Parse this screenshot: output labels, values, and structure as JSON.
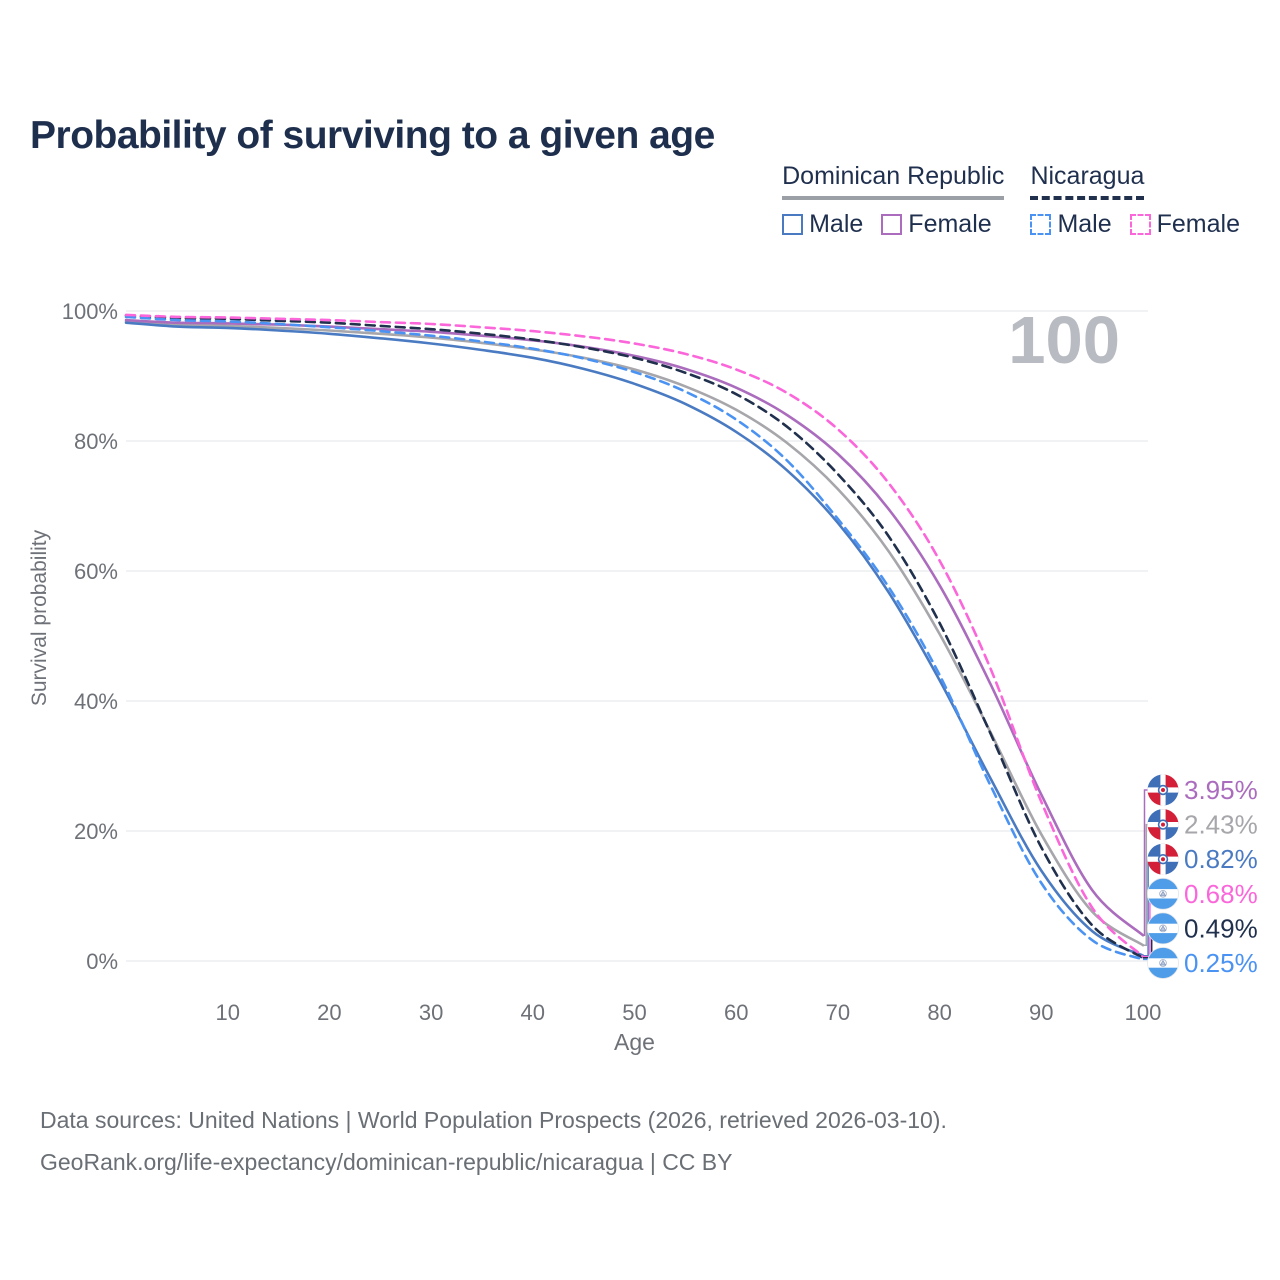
{
  "title": "Probability of surviving to a given age",
  "watermark": "100",
  "legend": {
    "groups": [
      {
        "name": "Dominican Republic",
        "line_style": "solid",
        "items": [
          {
            "label": "Male",
            "series": "dr_male"
          },
          {
            "label": "Female",
            "series": "dr_female"
          }
        ]
      },
      {
        "name": "Nicaragua",
        "line_style": "dashed",
        "items": [
          {
            "label": "Male",
            "series": "nic_male"
          },
          {
            "label": "Female",
            "series": "nic_female"
          }
        ]
      }
    ]
  },
  "axes": {
    "x": {
      "label": "Age",
      "ticks": [
        "10",
        "20",
        "30",
        "40",
        "50",
        "60",
        "70",
        "80",
        "90",
        "100"
      ],
      "tick_ages": [
        10,
        20,
        30,
        40,
        50,
        60,
        70,
        80,
        90,
        100
      ]
    },
    "y": {
      "label": "Survival probability",
      "ticks": [
        "0%",
        "20%",
        "40%",
        "60%",
        "80%",
        "100%"
      ],
      "tick_values": [
        0,
        20,
        40,
        60,
        80,
        100
      ]
    }
  },
  "end_labels": [
    {
      "value": "3.95%",
      "series": "dr_female",
      "flag": "dominican-republic"
    },
    {
      "value": "2.43%",
      "series": "dr_both",
      "flag": "dominican-republic"
    },
    {
      "value": "0.82%",
      "series": "dr_male",
      "flag": "dominican-republic"
    },
    {
      "value": "0.68%",
      "series": "nic_female",
      "flag": "nicaragua"
    },
    {
      "value": "0.49%",
      "series": "nic_both",
      "flag": "nicaragua"
    },
    {
      "value": "0.25%",
      "series": "nic_male",
      "flag": "nicaragua"
    }
  ],
  "colors": {
    "dr_male": "#4a7bc2",
    "dr_female": "#ab6cbe",
    "dr_both": "#a6a6ab",
    "nic_male": "#4b93f2",
    "nic_female": "#fb66da",
    "nic_both": "#20304d",
    "grid": "#e8e9ec",
    "axis_text": "#6e7278",
    "title_text": "#1e2f4d",
    "watermark": "#b8bbc1",
    "footer_text": "#6a6f75",
    "flag_dr_blue": "#3e6fb7",
    "flag_dr_red": "#d32038",
    "flag_nic_blue": "#4f9ce8"
  },
  "footer": {
    "line1": "Data sources: United Nations | World Population Prospects (2026, retrieved 2026-03-10).",
    "line2": "GeoRank.org/life-expectancy/dominican-republic/nicaragua | CC BY"
  },
  "chart_data": {
    "type": "line",
    "title": "Probability of surviving to a given age",
    "xlabel": "Age",
    "ylabel": "Survival probability",
    "xlim": [
      0,
      100
    ],
    "ylim": [
      0,
      100
    ],
    "grid": "horizontal",
    "legend_position": "top-right",
    "x": [
      0,
      5,
      10,
      15,
      20,
      25,
      30,
      35,
      40,
      45,
      50,
      55,
      60,
      65,
      70,
      75,
      80,
      85,
      90,
      95,
      100
    ],
    "series": [
      {
        "name": "Dominican Republic Both sexes",
        "country": "Dominican Republic",
        "sex": "both",
        "line_style": "solid",
        "color_key": "dr_both",
        "end_label": "2.43%",
        "values": [
          98.4,
          97.9,
          97.7,
          97.4,
          97.0,
          96.5,
          95.9,
          95.1,
          94.1,
          92.8,
          91.0,
          88.4,
          84.8,
          79.7,
          72.6,
          63.0,
          50.3,
          35.2,
          19.5,
          7.6,
          2.43
        ]
      },
      {
        "name": "Dominican Republic Male",
        "country": "Dominican Republic",
        "sex": "male",
        "line_style": "solid",
        "color_key": "dr_male",
        "end_label": "0.82%",
        "values": [
          98.2,
          97.6,
          97.4,
          97.0,
          96.5,
          95.8,
          95.0,
          94.0,
          92.8,
          91.1,
          88.8,
          85.7,
          81.4,
          75.5,
          67.4,
          56.7,
          43.2,
          28.1,
          13.9,
          4.6,
          0.82
        ]
      },
      {
        "name": "Dominican Republic Female",
        "country": "Dominican Republic",
        "sex": "female",
        "line_style": "solid",
        "color_key": "dr_female",
        "end_label": "3.95%",
        "values": [
          98.6,
          98.2,
          98.1,
          97.9,
          97.6,
          97.2,
          96.8,
          96.2,
          95.5,
          94.5,
          93.1,
          91.1,
          88.2,
          84.0,
          78.0,
          69.5,
          57.8,
          42.6,
          25.6,
          10.9,
          3.95
        ]
      },
      {
        "name": "Nicaragua Both sexes",
        "country": "Nicaragua",
        "sex": "both",
        "line_style": "dashed",
        "color_key": "nic_both",
        "end_label": "0.49%",
        "values": [
          99.3,
          98.9,
          98.8,
          98.5,
          98.2,
          97.7,
          97.2,
          96.5,
          95.6,
          94.4,
          92.8,
          90.5,
          87.2,
          82.2,
          74.9,
          65.3,
          52.0,
          35.0,
          17.5,
          5.5,
          0.49
        ]
      },
      {
        "name": "Nicaragua Male",
        "country": "Nicaragua",
        "sex": "male",
        "line_style": "dashed",
        "color_key": "nic_male",
        "end_label": "0.25%",
        "values": [
          99.1,
          98.6,
          98.4,
          98.0,
          97.5,
          96.9,
          96.2,
          95.3,
          94.2,
          92.7,
          90.6,
          87.6,
          83.3,
          77.0,
          68.0,
          57.5,
          44.0,
          27.0,
          12.0,
          3.2,
          0.25
        ]
      },
      {
        "name": "Nicaragua Female",
        "country": "Nicaragua",
        "sex": "female",
        "line_style": "dashed",
        "color_key": "nic_female",
        "end_label": "0.68%",
        "values": [
          99.4,
          99.1,
          99.0,
          98.8,
          98.6,
          98.3,
          98.0,
          97.5,
          96.9,
          96.1,
          95.0,
          93.4,
          91.0,
          87.4,
          81.8,
          73.5,
          61.6,
          45.0,
          24.5,
          8.2,
          0.68
        ]
      }
    ]
  }
}
